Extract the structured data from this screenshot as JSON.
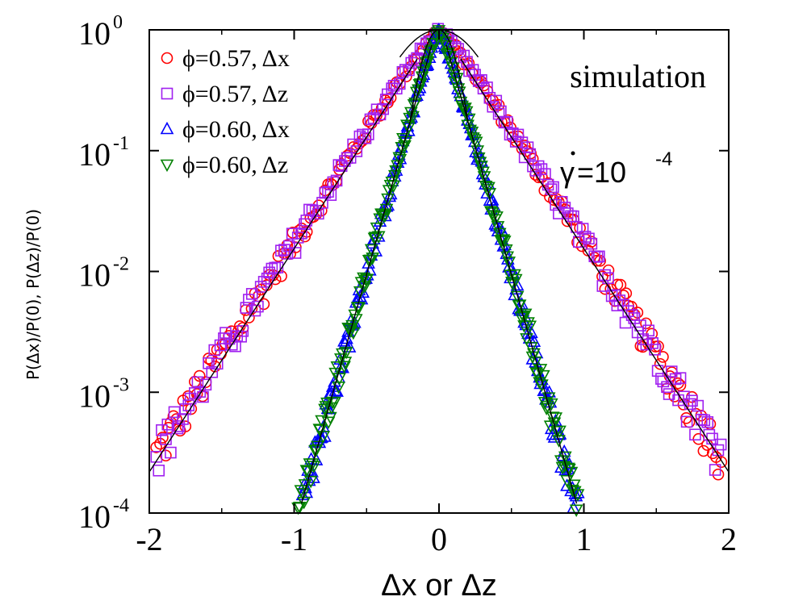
{
  "chart_data": {
    "type": "scatter",
    "title": "",
    "annotation": "simulation",
    "rate_label": {
      "symbol": "γ",
      "base": "=10",
      "exponent": "-4"
    },
    "xlabel": "Δx or Δz",
    "ylabel": "P(Δx)/P(0),  P(Δz)/P(0)",
    "xlim": [
      -2,
      2
    ],
    "ylim": [
      0.0001,
      1
    ],
    "yscale": "log",
    "x_ticks": [
      {
        "value": -2,
        "label": "-2"
      },
      {
        "value": -1,
        "label": "-1"
      },
      {
        "value": 0,
        "label": "0"
      },
      {
        "value": 1,
        "label": "1"
      },
      {
        "value": 2,
        "label": "2"
      }
    ],
    "y_ticks": [
      {
        "value": 1,
        "base": "10",
        "exp": "0"
      },
      {
        "value": 0.1,
        "base": "10",
        "exp": "-1"
      },
      {
        "value": 0.01,
        "base": "10",
        "exp": "-2"
      },
      {
        "value": 0.001,
        "base": "10",
        "exp": "-3"
      },
      {
        "value": 0.0001,
        "base": "10",
        "exp": "-4"
      }
    ],
    "legend_position": "top-left",
    "series": [
      {
        "name": "ϕ=0.57, Δx",
        "marker": "circle",
        "color": "#ff0000",
        "decay_length": 0.235,
        "x_max": 1.95
      },
      {
        "name": "ϕ=0.57, Δz",
        "marker": "square",
        "color": "#a020f0",
        "decay_length": 0.235,
        "x_max": 1.95
      },
      {
        "name": "ϕ=0.60, Δx",
        "marker": "triangle-up",
        "color": "#0000ff",
        "decay_length": 0.103,
        "x_max": 0.97
      },
      {
        "name": "ϕ=0.60, Δz",
        "marker": "triangle-down",
        "color": "#008000",
        "decay_length": 0.103,
        "x_max": 0.97
      }
    ],
    "fits": [
      {
        "type": "gaussian-core",
        "sigma": 0.265,
        "x_range": [
          -0.27,
          0.27
        ]
      },
      {
        "type": "exponential-tail",
        "decay_length": 0.235,
        "x_range": [
          -2,
          -0.15
        ]
      },
      {
        "type": "exponential-tail",
        "decay_length": 0.235,
        "x_range": [
          0.15,
          2
        ]
      },
      {
        "type": "gaussian-core",
        "sigma": 0.107,
        "x_range": [
          -0.2,
          0.2
        ]
      },
      {
        "type": "exponential-tail",
        "decay_length": 0.103,
        "x_range": [
          -0.95,
          -0.05
        ]
      },
      {
        "type": "exponential-tail",
        "decay_length": 0.103,
        "x_range": [
          0.05,
          0.95
        ]
      }
    ]
  }
}
